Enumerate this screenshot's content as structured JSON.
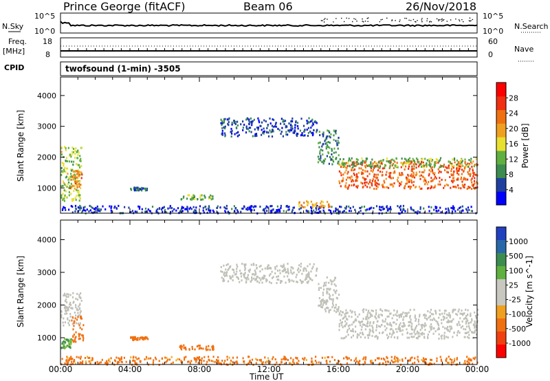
{
  "header": {
    "station": "Prince George (fitACF)",
    "beam": "Beam 06",
    "date": "26/Nov/2018"
  },
  "summary_panels": {
    "nsky_label": "N.Sky",
    "nsearch_label": "N.Search",
    "nsky_ticks": [
      "10^5",
      "10^0"
    ],
    "nsearch_ticks": [
      "10^5",
      "10^0"
    ],
    "freq_label": "Freq.",
    "freq_unit": "[MHz]",
    "freq_ticks": [
      "18",
      "8"
    ],
    "nave_label": "Nave",
    "nave_ticks": [
      "60",
      "0"
    ],
    "cpid_label": "CPID",
    "cpid_value": "twofsound (1-min) -3505"
  },
  "colors": {
    "power_scale": [
      "#0000ff",
      "#2040a0",
      "#3c8c50",
      "#60b040",
      "#e8e030",
      "#f0a020",
      "#f07010",
      "#f03010",
      "#ff0000"
    ],
    "velocity_scale": [
      "#2040c0",
      "#3070a0",
      "#40a060",
      "#80c040",
      "#c8c8c0",
      "#c8c8c0",
      "#f0a020",
      "#f07010",
      "#f04010",
      "#ff0000"
    ],
    "ground_scatter": "#c0c0b8"
  },
  "chart_data": [
    {
      "type": "heatmap",
      "title": "Power",
      "xlabel": "",
      "ylabel": "Slant Range [km]",
      "x_ticks": [
        "00:00",
        "04:00",
        "08:00",
        "12:00",
        "16:00",
        "20:00",
        "00:00"
      ],
      "xlim_hours": [
        0,
        24
      ],
      "y_ticks": [
        "1000",
        "2000",
        "3000",
        "4000"
      ],
      "ylim_km": [
        180,
        4600
      ],
      "colorbar": {
        "label": "Power [dB]",
        "ticks": [
          "4",
          "8",
          "12",
          "16",
          "20",
          "24",
          "28"
        ],
        "range": [
          0,
          32
        ]
      },
      "regions": [
        {
          "t": [
            0.0,
            1.2
          ],
          "r": [
            600,
            2400
          ],
          "level": 14
        },
        {
          "t": [
            0.5,
            1.2
          ],
          "r": [
            1000,
            1600
          ],
          "level": 22
        },
        {
          "t": [
            4.0,
            5.0
          ],
          "r": [
            950,
            1050
          ],
          "level": 6
        },
        {
          "t": [
            6.8,
            8.8
          ],
          "r": [
            650,
            800
          ],
          "level": 12
        },
        {
          "t": [
            9.2,
            14.8
          ],
          "r": [
            2700,
            3300
          ],
          "level": 5
        },
        {
          "t": [
            14.8,
            16.0
          ],
          "r": [
            1800,
            2900
          ],
          "level": 9
        },
        {
          "t": [
            16.0,
            24.0
          ],
          "r": [
            1000,
            1900
          ],
          "level": 24
        },
        {
          "t": [
            16.0,
            24.0
          ],
          "r": [
            1700,
            2000
          ],
          "level": 12
        },
        {
          "t": [
            0.0,
            24.0
          ],
          "r": [
            200,
            450
          ],
          "level": 4
        },
        {
          "t": [
            13.5,
            15.5
          ],
          "r": [
            400,
            600
          ],
          "level": 20
        }
      ]
    },
    {
      "type": "heatmap",
      "title": "Velocity",
      "xlabel": "Time UT",
      "ylabel": "Slant Range [km]",
      "x_ticks": [
        "00:00",
        "04:00",
        "08:00",
        "12:00",
        "16:00",
        "20:00",
        "00:00"
      ],
      "xlim_hours": [
        0,
        24
      ],
      "y_ticks": [
        "1000",
        "2000",
        "3000",
        "4000"
      ],
      "ylim_km": [
        180,
        4600
      ],
      "colorbar": {
        "label": "Velocity [m s^-1]",
        "ticks": [
          "1000",
          "500",
          "100",
          "25",
          "-25",
          "-100",
          "-500",
          "-1000"
        ]
      },
      "regions": [
        {
          "t": [
            0.0,
            1.2
          ],
          "r": [
            1400,
            2400
          ],
          "kind": "ground"
        },
        {
          "t": [
            0.0,
            0.6
          ],
          "r": [
            700,
            1000
          ],
          "velocity": 100
        },
        {
          "t": [
            0.6,
            1.3
          ],
          "r": [
            900,
            1700
          ],
          "velocity": -200
        },
        {
          "t": [
            4.0,
            5.0
          ],
          "r": [
            950,
            1050
          ],
          "velocity": -200
        },
        {
          "t": [
            6.8,
            8.8
          ],
          "r": [
            650,
            800
          ],
          "velocity": -200
        },
        {
          "t": [
            9.2,
            14.8
          ],
          "r": [
            2700,
            3300
          ],
          "kind": "ground"
        },
        {
          "t": [
            14.8,
            16.0
          ],
          "r": [
            1800,
            2900
          ],
          "kind": "ground"
        },
        {
          "t": [
            16.0,
            24.0
          ],
          "r": [
            1000,
            1900
          ],
          "kind": "ground"
        },
        {
          "t": [
            0.0,
            24.0
          ],
          "r": [
            200,
            450
          ],
          "velocity": -150
        }
      ]
    }
  ]
}
